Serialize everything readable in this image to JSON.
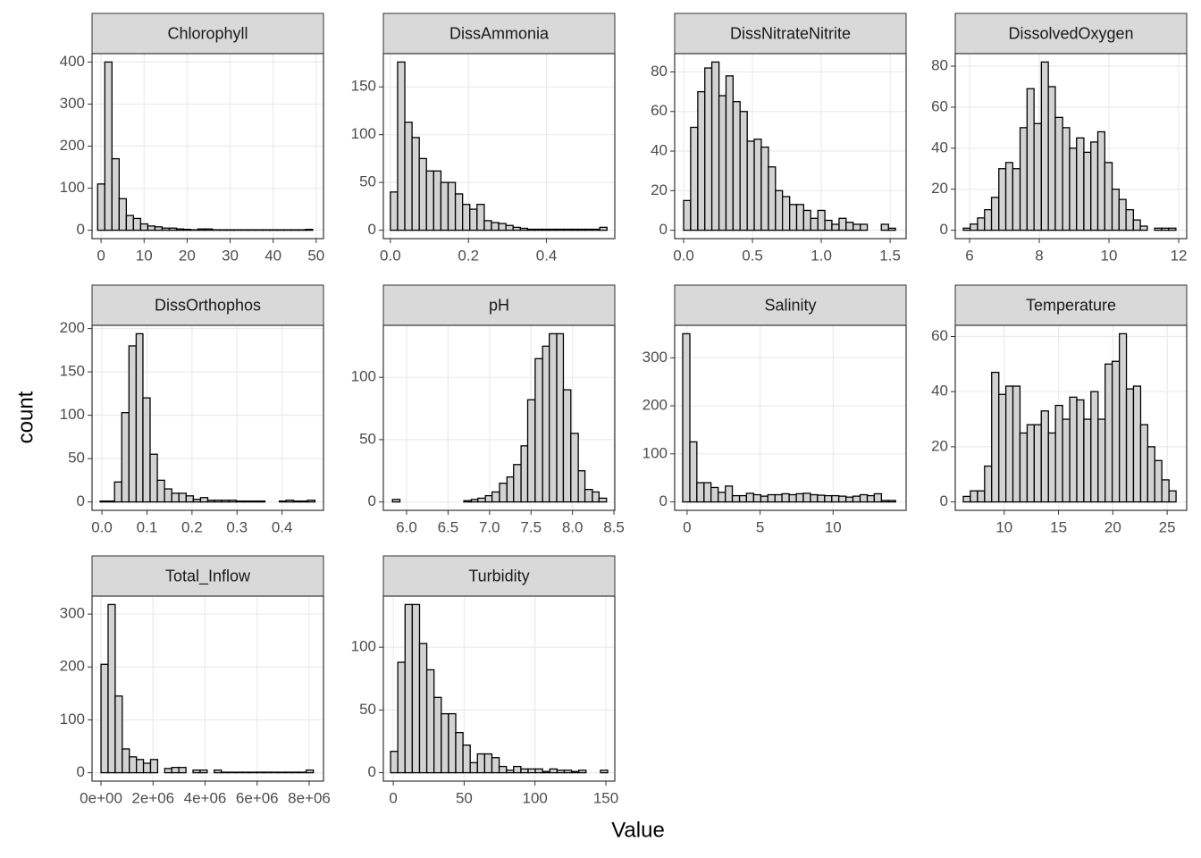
{
  "chart_data": {
    "type": "histogram",
    "xlabel": "Value",
    "ylabel": "count",
    "fill": "#d3d3d3",
    "grid": true,
    "facets": [
      {
        "title": "Chlorophyll",
        "xlim": [
          -2.1,
          51.7
        ],
        "ylim": [
          -20,
          420
        ],
        "xticks": [
          0,
          10,
          20,
          30,
          40,
          50
        ],
        "yticks": [
          0,
          100,
          200,
          300,
          400
        ],
        "bins": [
          -0.8,
          0.87,
          2.53,
          4.2,
          5.87,
          7.53,
          9.2,
          10.87,
          12.53,
          14.2,
          15.87,
          17.53,
          19.2,
          20.87,
          22.53,
          24.2,
          25.87,
          27.53,
          29.2,
          30.87,
          32.53,
          34.2,
          35.87,
          37.53,
          39.2,
          40.87,
          42.53,
          44.2,
          45.87,
          47.53,
          49.2
        ],
        "values": [
          110,
          400,
          170,
          75,
          35,
          28,
          15,
          10,
          8,
          5,
          5,
          3,
          2,
          1,
          3,
          3,
          1,
          1,
          1,
          1,
          1,
          1,
          1,
          1,
          1,
          1,
          1,
          1,
          1,
          2
        ]
      },
      {
        "title": "DissAmmonia",
        "xlim": [
          -0.018,
          0.575
        ],
        "ylim": [
          -8.8,
          184.8
        ],
        "xticks": [
          {
            "value": 0,
            "label": "0.0"
          },
          0.2,
          0.4
        ],
        "yticks": [
          0,
          50,
          100,
          150
        ],
        "bins": [
          0,
          0.0185,
          0.037,
          0.0555,
          0.074,
          0.0925,
          0.111,
          0.1295,
          0.148,
          0.1665,
          0.185,
          0.2035,
          0.222,
          0.2405,
          0.259,
          0.2775,
          0.296,
          0.3145,
          0.333,
          0.3515,
          0.37,
          0.3885,
          0.407,
          0.4255,
          0.444,
          0.4625,
          0.481,
          0.4995,
          0.518,
          0.5365,
          0.555
        ],
        "values": [
          40,
          176,
          113,
          97,
          75,
          62,
          62,
          50,
          50,
          38,
          27,
          22,
          27,
          10,
          8,
          7,
          5,
          3,
          2,
          1,
          1,
          1,
          1,
          1,
          1,
          1,
          1,
          1,
          1,
          3
        ]
      },
      {
        "title": "DissNitrateNitrite",
        "xlim": [
          -0.065,
          1.616
        ],
        "ylim": [
          -4.25,
          89.25
        ],
        "xticks": [
          {
            "value": 0,
            "label": "0.0"
          },
          0.5,
          {
            "value": 1,
            "label": "1.0"
          },
          1.5
        ],
        "yticks": [
          0,
          20,
          40,
          60,
          80
        ],
        "bins": [
          0,
          0.051,
          0.103,
          0.154,
          0.205,
          0.257,
          0.308,
          0.359,
          0.41,
          0.462,
          0.513,
          0.564,
          0.616,
          0.667,
          0.718,
          0.77,
          0.821,
          0.872,
          0.923,
          0.975,
          1.026,
          1.077,
          1.129,
          1.18,
          1.231,
          1.283,
          1.334,
          1.385,
          1.436,
          1.488,
          1.539
        ],
        "values": [
          15,
          52,
          70,
          82,
          85,
          68,
          78,
          65,
          60,
          45,
          46,
          42,
          32,
          20,
          17,
          13,
          13,
          10,
          6,
          10,
          5,
          3,
          6,
          4,
          3,
          3,
          0,
          0,
          3,
          1
        ]
      },
      {
        "title": "DissolvedOxygen",
        "xlim": [
          5.59,
          12.23
        ],
        "ylim": [
          -4.1,
          86.1
        ],
        "xticks": [
          6,
          8,
          10,
          12
        ],
        "yticks": [
          0,
          20,
          40,
          60,
          80
        ],
        "bins": [
          5.82,
          6.02,
          6.23,
          6.43,
          6.63,
          6.84,
          7.04,
          7.24,
          7.45,
          7.65,
          7.85,
          8.06,
          8.26,
          8.46,
          8.67,
          8.87,
          9.07,
          9.28,
          9.48,
          9.68,
          9.88,
          10.09,
          10.29,
          10.49,
          10.7,
          10.9,
          11.1,
          11.31,
          11.51,
          11.71,
          11.92
        ],
        "values": [
          1,
          3,
          6,
          10,
          16,
          30,
          33,
          30,
          50,
          69,
          52,
          82,
          70,
          55,
          50,
          40,
          45,
          38,
          43,
          48,
          33,
          20,
          15,
          10,
          5,
          2,
          0,
          1,
          1,
          1
        ]
      },
      {
        "title": "DissOrthophos",
        "xlim": [
          -0.022,
          0.492
        ],
        "ylim": [
          -9.7,
          203.7
        ],
        "xticks": [
          {
            "value": 0,
            "label": "0.0"
          },
          0.1,
          0.2,
          0.3,
          0.4
        ],
        "yticks": [
          0,
          50,
          100,
          150,
          200
        ],
        "bins": [
          -0.004,
          0.012,
          0.028,
          0.044,
          0.06,
          0.076,
          0.091,
          0.107,
          0.123,
          0.139,
          0.155,
          0.171,
          0.187,
          0.203,
          0.219,
          0.235,
          0.25,
          0.266,
          0.282,
          0.298,
          0.314,
          0.33,
          0.346,
          0.362,
          0.378,
          0.394,
          0.409,
          0.425,
          0.441,
          0.457,
          0.473
        ],
        "values": [
          1,
          1,
          23,
          103,
          180,
          194,
          120,
          55,
          25,
          15,
          10,
          10,
          7,
          3,
          5,
          2,
          2,
          2,
          2,
          1,
          1,
          1,
          1,
          0,
          0,
          1,
          2,
          1,
          1,
          2
        ]
      },
      {
        "title": "pH",
        "xlim": [
          5.72,
          8.51
        ],
        "ylim": [
          -6.75,
          141.75
        ],
        "xticks": [
          {
            "value": 6,
            "label": "6.0"
          },
          6.5,
          {
            "value": 7,
            "label": "7.0"
          },
          7.5,
          {
            "value": 8,
            "label": "8.0"
          },
          8.5
        ],
        "yticks": [
          0,
          50,
          100
        ],
        "bins": [
          5.83,
          5.92,
          6.0,
          6.09,
          6.17,
          6.26,
          6.35,
          6.43,
          6.52,
          6.6,
          6.69,
          6.78,
          6.86,
          6.95,
          7.03,
          7.12,
          7.21,
          7.29,
          7.38,
          7.46,
          7.55,
          7.64,
          7.72,
          7.81,
          7.89,
          7.98,
          8.07,
          8.15,
          8.24,
          8.32,
          8.41
        ],
        "values": [
          2,
          0,
          0,
          0,
          0,
          0,
          0,
          0,
          0,
          0,
          1,
          2,
          3,
          5,
          8,
          15,
          20,
          30,
          45,
          82,
          115,
          125,
          135,
          135,
          90,
          55,
          25,
          10,
          8,
          3
        ]
      },
      {
        "title": "Salinity",
        "xlim": [
          -0.85,
          15.0
        ],
        "ylim": [
          -17.5,
          367.5
        ],
        "xticks": [
          0,
          5,
          10
        ],
        "yticks": [
          0,
          100,
          200,
          300
        ],
        "bins": [
          -0.3,
          0.19,
          0.67,
          1.16,
          1.64,
          2.13,
          2.62,
          3.1,
          3.59,
          4.07,
          4.56,
          5.05,
          5.53,
          6.02,
          6.5,
          6.99,
          7.48,
          7.96,
          8.45,
          8.93,
          9.42,
          9.91,
          10.39,
          10.88,
          11.36,
          11.85,
          12.34,
          12.82,
          13.31,
          13.79,
          14.28
        ],
        "values": [
          350,
          125,
          40,
          40,
          30,
          20,
          33,
          13,
          13,
          18,
          15,
          12,
          15,
          15,
          17,
          15,
          17,
          18,
          15,
          14,
          13,
          13,
          12,
          10,
          12,
          15,
          13,
          17,
          3,
          3
        ]
      },
      {
        "title": "Temperature",
        "xlim": [
          5.49,
          26.8
        ],
        "ylim": [
          -3.05,
          64.05
        ],
        "xticks": [
          10,
          15,
          20,
          25
        ],
        "yticks": [
          0,
          20,
          40,
          60
        ],
        "bins": [
          6.23,
          6.88,
          7.54,
          8.19,
          8.84,
          9.5,
          10.15,
          10.8,
          11.45,
          12.11,
          12.76,
          13.41,
          14.07,
          14.72,
          15.37,
          16.03,
          16.68,
          17.33,
          17.98,
          18.64,
          19.29,
          19.94,
          20.6,
          21.25,
          21.9,
          22.56,
          23.21,
          23.86,
          24.51,
          25.17,
          25.82
        ],
        "values": [
          2,
          4,
          4,
          13,
          47,
          39,
          42,
          42,
          25,
          28,
          28,
          33,
          25,
          35,
          30,
          38,
          37,
          30,
          40,
          30,
          50,
          51,
          61,
          41,
          42,
          28,
          20,
          15,
          8,
          4
        ]
      },
      {
        "title": "Total_Inflow",
        "xlim": [
          -345000,
          8550000
        ],
        "ylim": [
          -15.9,
          333.9
        ],
        "xticks": [
          {
            "value": 0,
            "label": "0e+00"
          },
          {
            "value": 2000000,
            "label": "2e+06"
          },
          {
            "value": 4000000,
            "label": "4e+06"
          },
          {
            "value": 6000000,
            "label": "6e+06"
          },
          {
            "value": 8000000,
            "label": "8e+06"
          }
        ],
        "yticks": [
          0,
          100,
          200,
          300
        ],
        "bins": [
          0,
          272000,
          544000,
          816000,
          1088000,
          1360000,
          1632000,
          1904000,
          2176000,
          2448000,
          2720000,
          2992000,
          3264000,
          3536000,
          3808000,
          4080000,
          4352000,
          4624000,
          4896000,
          5168000,
          5440000,
          5712000,
          5984000,
          6256000,
          6528000,
          6800000,
          7072000,
          7344000,
          7616000,
          7888000,
          8160000
        ],
        "values": [
          205,
          318,
          145,
          45,
          30,
          25,
          18,
          25,
          0,
          8,
          10,
          10,
          0,
          5,
          5,
          0,
          5,
          1,
          1,
          1,
          1,
          1,
          1,
          1,
          1,
          1,
          1,
          1,
          1,
          5
        ]
      },
      {
        "title": "Turbidity",
        "xlim": [
          -7,
          156.3
        ],
        "ylim": [
          -6.7,
          140.7
        ],
        "xticks": [
          0,
          50,
          100,
          150
        ],
        "yticks": [
          0,
          50,
          100
        ],
        "bins": [
          -1.9,
          3.21,
          8.31,
          13.42,
          18.53,
          23.64,
          28.74,
          33.85,
          38.96,
          44.06,
          49.17,
          54.28,
          59.38,
          64.49,
          69.6,
          74.71,
          79.81,
          84.92,
          90.03,
          95.13,
          100.24,
          105.35,
          110.45,
          115.56,
          120.67,
          125.78,
          130.88,
          135.99,
          141.1,
          146.2,
          151.31
        ],
        "values": [
          17,
          88,
          134,
          134,
          103,
          82,
          60,
          47,
          47,
          32,
          22,
          8,
          15,
          15,
          12,
          5,
          2,
          5,
          3,
          3,
          3,
          1,
          3,
          2,
          2,
          1,
          2,
          0,
          0,
          2
        ]
      }
    ]
  }
}
